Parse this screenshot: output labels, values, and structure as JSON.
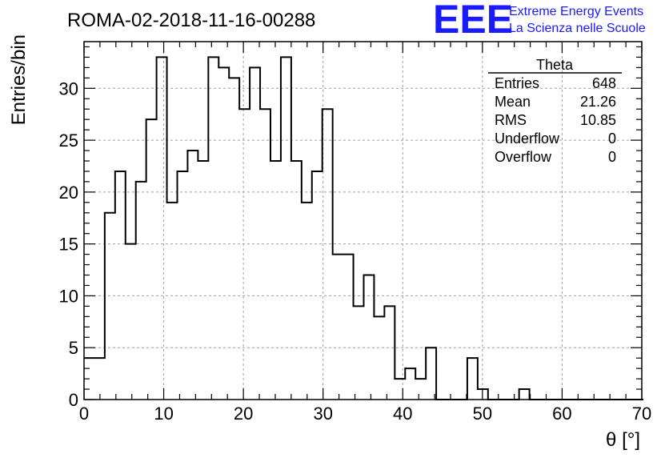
{
  "chart_data": {
    "type": "histogram",
    "title": "ROMA-02-2018-11-16-00288",
    "xlabel": "θ [°]",
    "ylabel": "Entries/bin",
    "xlim": [
      0,
      70
    ],
    "ylim": [
      0,
      34.5
    ],
    "x_ticks": [
      0,
      10,
      20,
      30,
      40,
      50,
      60,
      70
    ],
    "y_ticks": [
      0,
      5,
      10,
      15,
      20,
      25,
      30
    ],
    "grid": true,
    "bin_width": 1.3,
    "bin_start": 0,
    "values": [
      4,
      4,
      18,
      22,
      15,
      21,
      27,
      33,
      19,
      22,
      24,
      23,
      33,
      32,
      31,
      28,
      32,
      28,
      23,
      33,
      23,
      19,
      22,
      28,
      14,
      14,
      9,
      12,
      8,
      9,
      2,
      3,
      2,
      5,
      0,
      0,
      0,
      4,
      1,
      0,
      0,
      0,
      1,
      0,
      0,
      0,
      0,
      0,
      0,
      0,
      0,
      0,
      0,
      0
    ]
  },
  "stats_box": {
    "name": "Theta",
    "rows": [
      {
        "label": "Entries",
        "value": "648"
      },
      {
        "label": "Mean",
        "value": "21.26"
      },
      {
        "label": "RMS",
        "value": "10.85"
      },
      {
        "label": "Underflow",
        "value": "0"
      },
      {
        "label": "Overflow",
        "value": "0"
      }
    ]
  },
  "logo": {
    "mark": "EEE",
    "line1": "Extreme Energy Events",
    "line2": "La Scienza nelle Scuole",
    "color": "#1a1aff"
  }
}
